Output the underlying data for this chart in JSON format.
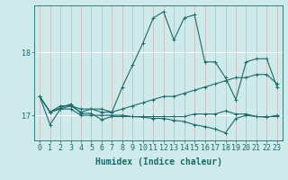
{
  "title": "",
  "xlabel": "Humidex (Indice chaleur)",
  "ylabel": "",
  "bg_color": "#ceeaea",
  "line_color": "#1a6b6b",
  "grid_color": "#b8d8d8",
  "xlim": [
    -0.5,
    23.5
  ],
  "ylim": [
    16.6,
    18.75
  ],
  "yticks": [
    17,
    18
  ],
  "xticks": [
    0,
    1,
    2,
    3,
    4,
    5,
    6,
    7,
    8,
    9,
    10,
    11,
    12,
    13,
    14,
    15,
    16,
    17,
    18,
    19,
    20,
    21,
    22,
    23
  ],
  "series": [
    [
      17.3,
      16.85,
      17.1,
      17.15,
      17.05,
      17.1,
      17.1,
      17.05,
      17.45,
      17.8,
      18.15,
      18.55,
      18.65,
      18.2,
      18.55,
      18.6,
      17.85,
      17.85,
      17.6,
      17.25,
      17.85,
      17.9,
      17.9,
      17.45
    ],
    [
      17.3,
      17.05,
      17.15,
      17.15,
      17.1,
      17.1,
      17.05,
      17.05,
      17.1,
      17.15,
      17.2,
      17.25,
      17.3,
      17.3,
      17.35,
      17.4,
      17.45,
      17.5,
      17.55,
      17.6,
      17.6,
      17.65,
      17.65,
      17.5
    ],
    [
      17.3,
      17.05,
      17.1,
      17.1,
      17.0,
      17.0,
      17.0,
      17.0,
      17.0,
      16.98,
      16.97,
      16.95,
      16.95,
      16.92,
      16.9,
      16.85,
      16.82,
      16.78,
      16.72,
      16.95,
      17.0,
      16.98,
      16.97,
      17.0
    ],
    [
      17.3,
      17.05,
      17.12,
      17.18,
      17.03,
      17.03,
      16.93,
      16.98,
      16.98,
      16.98,
      16.98,
      16.98,
      16.98,
      16.98,
      16.98,
      17.02,
      17.02,
      17.02,
      17.07,
      17.02,
      17.02,
      16.98,
      16.98,
      16.98
    ]
  ],
  "marker": "+",
  "markersize": 3,
  "linewidth": 0.8,
  "label_fontsize": 7,
  "tick_fontsize": 6
}
